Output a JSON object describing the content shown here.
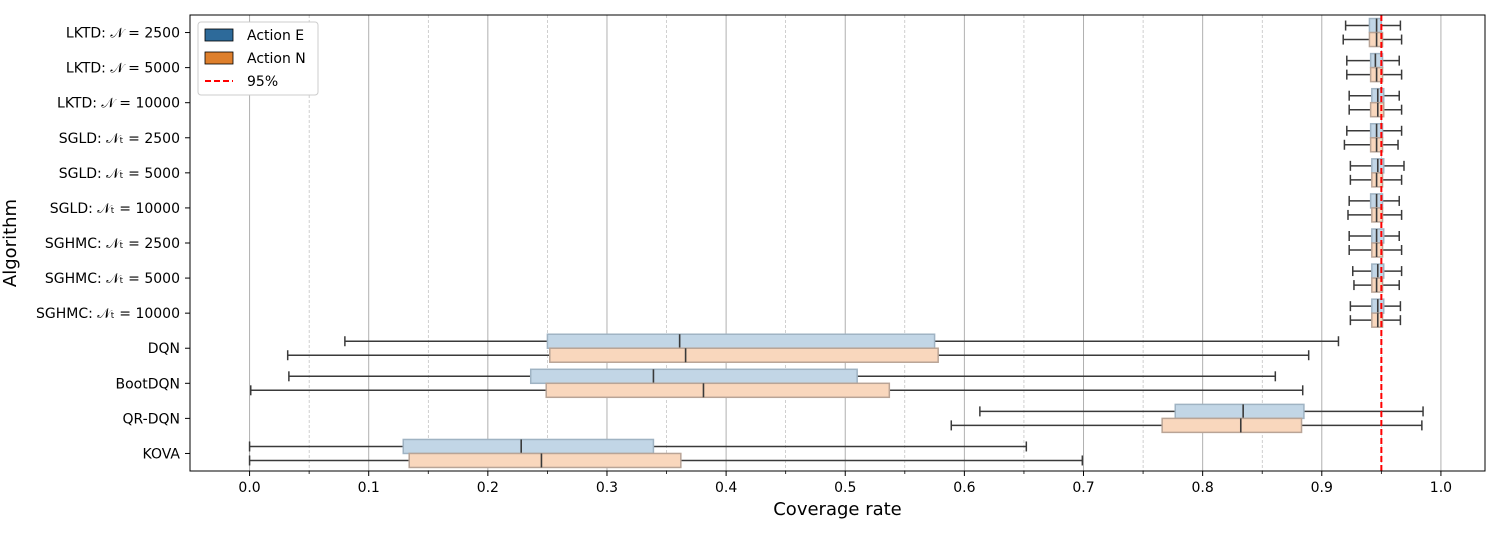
{
  "chart_data": {
    "type": "boxplot-horizontal",
    "xlabel": "Coverage rate",
    "ylabel": "Algorithm",
    "xlim": [
      -0.05,
      1.037
    ],
    "xticks": [
      "0.0",
      "0.1",
      "0.2",
      "0.3",
      "0.4",
      "0.5",
      "0.6",
      "0.7",
      "0.8",
      "0.9",
      "1.0"
    ],
    "grid": {
      "major": true,
      "minor": true
    },
    "legend_position": "top-left",
    "reference_line": {
      "value": 0.95,
      "label": "95%",
      "color": "#ff0000",
      "style": "dashed"
    },
    "series": [
      {
        "name": "Action E",
        "legend_color": "#2d6a9a",
        "box_fill": "#c2d6e6",
        "box_edge": "#9fb3c3"
      },
      {
        "name": "Action N",
        "legend_color": "#de7f2c",
        "box_fill": "#f9d7bd",
        "box_edge": "#b9a496"
      }
    ],
    "categories": [
      {
        "label": "LKTD: 𝒩 = 2500",
        "E": {
          "whislo": 0.92,
          "q1": 0.94,
          "med": 0.946,
          "q3": 0.95,
          "whishi": 0.966
        },
        "N": {
          "whislo": 0.918,
          "q1": 0.94,
          "med": 0.946,
          "q3": 0.951,
          "whishi": 0.967
        }
      },
      {
        "label": "LKTD: 𝒩 = 5000",
        "E": {
          "whislo": 0.921,
          "q1": 0.941,
          "med": 0.945,
          "q3": 0.951,
          "whishi": 0.965
        },
        "N": {
          "whislo": 0.921,
          "q1": 0.941,
          "med": 0.946,
          "q3": 0.951,
          "whishi": 0.967
        }
      },
      {
        "label": "LKTD: 𝒩 = 10000",
        "E": {
          "whislo": 0.923,
          "q1": 0.942,
          "med": 0.947,
          "q3": 0.952,
          "whishi": 0.965
        },
        "N": {
          "whislo": 0.923,
          "q1": 0.941,
          "med": 0.947,
          "q3": 0.952,
          "whishi": 0.967
        }
      },
      {
        "label": "SGLD: 𝒩ₜ = 2500",
        "E": {
          "whislo": 0.921,
          "q1": 0.941,
          "med": 0.946,
          "q3": 0.951,
          "whishi": 0.967
        },
        "N": {
          "whislo": 0.919,
          "q1": 0.941,
          "med": 0.946,
          "q3": 0.951,
          "whishi": 0.964
        }
      },
      {
        "label": "SGLD: 𝒩ₜ = 5000",
        "E": {
          "whislo": 0.924,
          "q1": 0.942,
          "med": 0.947,
          "q3": 0.952,
          "whishi": 0.969
        },
        "N": {
          "whislo": 0.924,
          "q1": 0.942,
          "med": 0.946,
          "q3": 0.951,
          "whishi": 0.967
        }
      },
      {
        "label": "SGLD: 𝒩ₜ = 10000",
        "E": {
          "whislo": 0.923,
          "q1": 0.941,
          "med": 0.946,
          "q3": 0.951,
          "whishi": 0.965
        },
        "N": {
          "whislo": 0.922,
          "q1": 0.942,
          "med": 0.946,
          "q3": 0.951,
          "whishi": 0.967
        }
      },
      {
        "label": "SGHMC: 𝒩ₜ = 2500",
        "E": {
          "whislo": 0.923,
          "q1": 0.942,
          "med": 0.946,
          "q3": 0.952,
          "whishi": 0.965
        },
        "N": {
          "whislo": 0.923,
          "q1": 0.942,
          "med": 0.946,
          "q3": 0.951,
          "whishi": 0.967
        }
      },
      {
        "label": "SGHMC: 𝒩ₜ = 5000",
        "E": {
          "whislo": 0.926,
          "q1": 0.942,
          "med": 0.947,
          "q3": 0.952,
          "whishi": 0.967
        },
        "N": {
          "whislo": 0.927,
          "q1": 0.942,
          "med": 0.946,
          "q3": 0.951,
          "whishi": 0.965
        }
      },
      {
        "label": "SGHMC: 𝒩ₜ = 10000",
        "E": {
          "whislo": 0.924,
          "q1": 0.942,
          "med": 0.947,
          "q3": 0.952,
          "whishi": 0.966
        },
        "N": {
          "whislo": 0.924,
          "q1": 0.942,
          "med": 0.947,
          "q3": 0.951,
          "whishi": 0.966
        }
      },
      {
        "label": "DQN",
        "E": {
          "whislo": 0.08,
          "q1": 0.25,
          "med": 0.361,
          "q3": 0.575,
          "whishi": 0.914
        },
        "N": {
          "whislo": 0.032,
          "q1": 0.252,
          "med": 0.366,
          "q3": 0.578,
          "whishi": 0.889
        }
      },
      {
        "label": "BootDQN",
        "E": {
          "whislo": 0.033,
          "q1": 0.236,
          "med": 0.339,
          "q3": 0.51,
          "whishi": 0.861
        },
        "N": {
          "whislo": 0.001,
          "q1": 0.249,
          "med": 0.381,
          "q3": 0.537,
          "whishi": 0.884
        }
      },
      {
        "label": "QR-DQN",
        "E": {
          "whislo": 0.613,
          "q1": 0.777,
          "med": 0.834,
          "q3": 0.885,
          "whishi": 0.985
        },
        "N": {
          "whislo": 0.589,
          "q1": 0.766,
          "med": 0.832,
          "q3": 0.883,
          "whishi": 0.984
        }
      },
      {
        "label": "KOVA",
        "E": {
          "whislo": 0.0,
          "q1": 0.129,
          "med": 0.228,
          "q3": 0.339,
          "whishi": 0.652
        },
        "N": {
          "whislo": 0.0,
          "q1": 0.134,
          "med": 0.245,
          "q3": 0.362,
          "whishi": 0.699
        }
      }
    ]
  }
}
